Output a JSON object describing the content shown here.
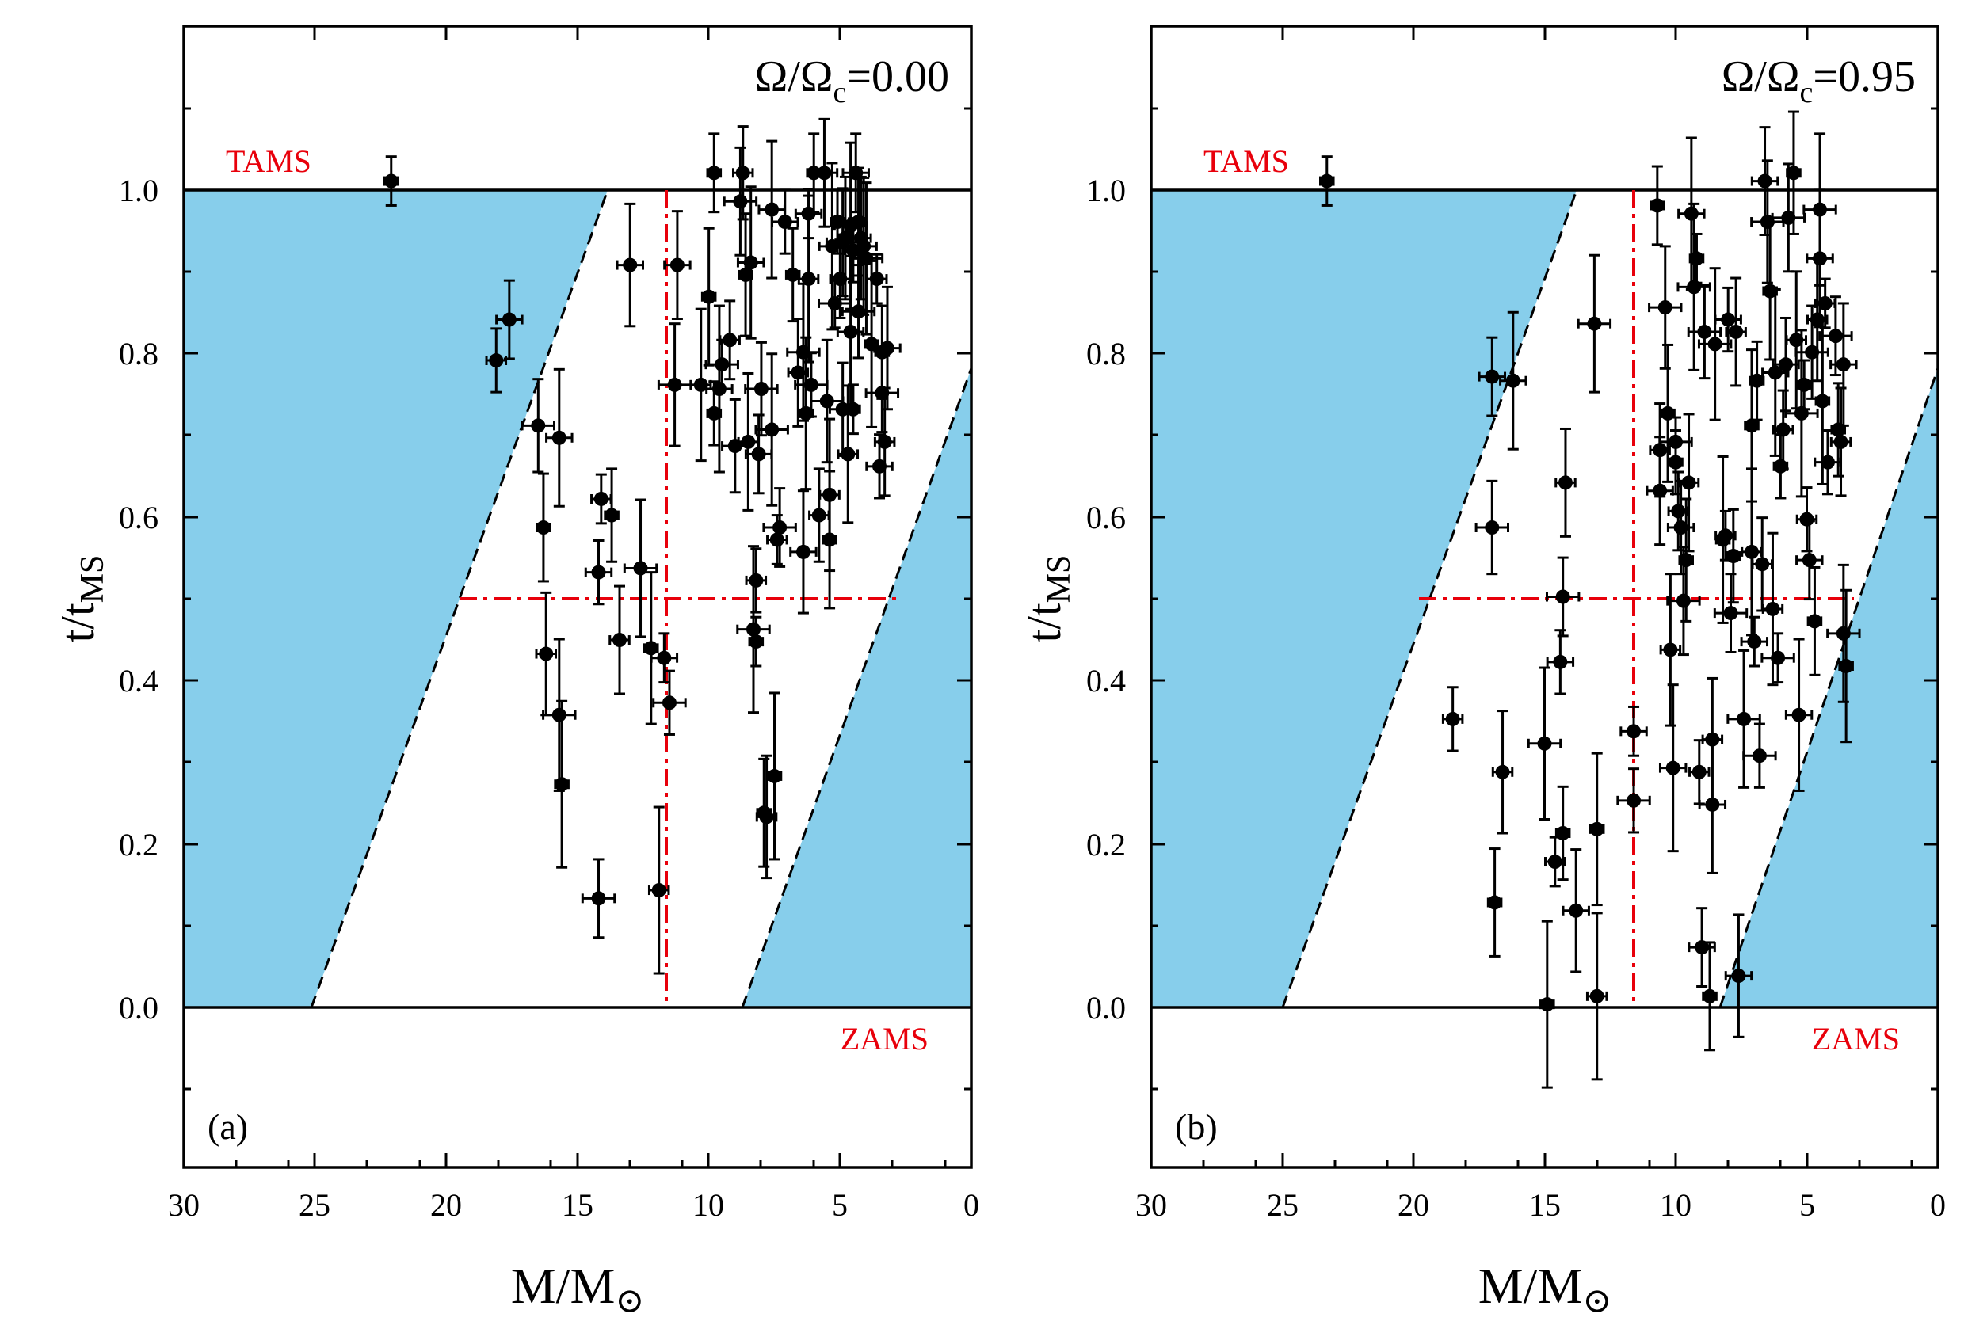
{
  "chart_data": [
    {
      "type": "scatter",
      "panel_label": "(a)",
      "title": "Ω/Ωc=0.00",
      "omega_symbol": "Ω/Ω",
      "omega_sub": "c",
      "omega_value": "=0.00",
      "xlabel": "M/M⊙",
      "xlabel_main": "M/M",
      "xlabel_sub": "⊙",
      "ylabel": "t/tMS",
      "ylabel_main": "t/t",
      "ylabel_sub": "MS",
      "xlim": [
        30,
        0
      ],
      "ylim": [
        -0.2,
        1.2
      ],
      "x_ticks": [
        "30",
        "25",
        "20",
        "15",
        "10",
        "5",
        "0"
      ],
      "y_ticks": [
        "0.0",
        "0.2",
        "0.4",
        "0.6",
        "0.8",
        "1.0"
      ],
      "tams_label": "TAMS",
      "zams_label": "ZAMS",
      "grid": false,
      "reference_lines": {
        "tams_y": 1.0,
        "zams_y": 0.0,
        "mass_split_x": 11.6,
        "half_y": 0.5,
        "half_x_range": [
          19.6,
          3.0
        ]
      },
      "shaded_regions": {
        "left_dashed": [
          [
            25.0,
            0.0
          ],
          [
            14.0,
            1.0
          ]
        ],
        "right_dashed": [
          [
            8.6,
            0.0
          ],
          [
            0.0,
            0.78
          ]
        ],
        "fill": "#87ceeb"
      },
      "series": [
        {
          "name": "stars",
          "x": [
            22.1,
            18.1,
            17.6,
            16.5,
            16.3,
            16.2,
            15.7,
            15.7,
            15.6,
            14.1,
            14.2,
            14.2,
            13.7,
            13.4,
            13.0,
            12.6,
            12.2,
            11.9,
            11.7,
            11.5,
            9.8,
            8.7,
            11.2,
            11.3,
            10.0,
            10.3,
            9.6,
            9.5,
            9.8,
            9.2,
            9.0,
            8.8,
            8.6,
            8.5,
            8.4,
            8.3,
            8.2,
            8.2,
            8.1,
            8.0,
            7.9,
            7.8,
            7.6,
            7.6,
            7.5,
            7.4,
            7.1,
            7.3,
            6.8,
            6.6,
            6.4,
            6.4,
            6.3,
            6.2,
            6.2,
            6.1,
            6.0,
            5.8,
            5.6,
            5.5,
            5.4,
            5.4,
            5.3,
            5.2,
            5.1,
            5.0,
            4.9,
            4.9,
            4.8,
            4.7,
            4.6,
            4.6,
            4.5,
            4.5,
            4.4,
            4.3,
            4.3,
            4.2,
            4.1,
            4.0,
            3.8,
            3.6,
            3.5,
            3.4,
            3.4,
            3.3,
            3.2
          ],
          "y": [
            1.01,
            0.79,
            0.84,
            0.71,
            0.585,
            0.43,
            0.695,
            0.355,
            0.27,
            0.62,
            0.53,
            0.13,
            0.6,
            0.447,
            0.907,
            0.535,
            0.437,
            0.14,
            0.425,
            0.37,
            1.02,
            1.02,
            0.907,
            0.76,
            0.868,
            0.76,
            0.755,
            0.785,
            0.725,
            0.815,
            0.685,
            0.985,
            0.895,
            0.69,
            0.91,
            0.46,
            0.445,
            0.52,
            0.675,
            0.755,
            0.235,
            0.23,
            0.975,
            0.705,
            0.28,
            0.57,
            0.96,
            0.585,
            0.895,
            0.775,
            0.555,
            0.8,
            0.725,
            0.89,
            0.97,
            0.76,
            1.02,
            0.6,
            1.02,
            0.74,
            0.57,
            0.625,
            0.93,
            0.86,
            0.96,
            0.89,
            0.73,
            0.935,
            0.94,
            0.675,
            0.825,
            0.955,
            0.73,
            0.925,
            1.02,
            0.85,
            0.96,
            0.94,
            0.93,
            0.915,
            0.81,
            0.89,
            0.66,
            0.75,
            0.8,
            0.69,
            0.805
          ]
        }
      ]
    },
    {
      "type": "scatter",
      "panel_label": "(b)",
      "title": "Ω/Ωc=0.95",
      "omega_symbol": "Ω/Ω",
      "omega_sub": "c",
      "omega_value": "=0.95",
      "xlabel": "M/M⊙",
      "xlabel_main": "M/M",
      "xlabel_sub": "⊙",
      "ylabel": "t/tMS",
      "ylabel_main": "t/t",
      "ylabel_sub": "MS",
      "xlim": [
        30,
        0
      ],
      "ylim": [
        -0.2,
        1.2
      ],
      "x_ticks": [
        "30",
        "25",
        "20",
        "15",
        "10",
        "5",
        "0"
      ],
      "y_ticks": [
        "0.0",
        "0.2",
        "0.4",
        "0.6",
        "0.8",
        "1.0"
      ],
      "tams_label": "TAMS",
      "zams_label": "ZAMS",
      "grid": false,
      "reference_lines": {
        "tams_y": 1.0,
        "zams_y": 0.0,
        "mass_split_x": 11.6,
        "half_y": 0.5,
        "half_x_range": [
          19.8,
          3.2
        ]
      },
      "shaded_regions": {
        "left_dashed": [
          [
            25.0,
            0.0
          ],
          [
            13.9,
            1.0
          ]
        ],
        "right_dashed": [
          [
            8.3,
            0.0
          ],
          [
            0.0,
            0.78
          ]
        ],
        "fill": "#87ceeb"
      },
      "series": [
        {
          "name": "stars",
          "x": [
            23.3,
            18.5,
            17.0,
            17.0,
            16.9,
            16.6,
            16.2,
            15.0,
            14.9,
            14.6,
            14.4,
            14.3,
            14.3,
            14.2,
            13.8,
            13.1,
            13.0,
            13.0,
            11.6,
            11.6,
            10.7,
            10.6,
            10.6,
            10.4,
            10.3,
            10.2,
            10.1,
            10.0,
            10.0,
            9.9,
            9.8,
            9.7,
            9.6,
            9.5,
            9.4,
            9.3,
            9.2,
            9.1,
            9.0,
            8.9,
            8.7,
            8.6,
            8.6,
            8.5,
            8.2,
            8.1,
            8.0,
            7.9,
            7.8,
            7.7,
            7.6,
            7.4,
            7.1,
            7.1,
            7.0,
            6.8,
            6.9,
            6.7,
            6.6,
            6.5,
            6.4,
            6.3,
            6.2,
            6.1,
            6.0,
            5.9,
            5.8,
            5.7,
            5.5,
            5.4,
            5.3,
            5.2,
            5.1,
            5.0,
            4.9,
            4.8,
            4.7,
            4.6,
            4.5,
            4.5,
            4.4,
            4.3,
            4.2,
            3.9,
            3.8,
            3.7,
            3.6,
            3.6,
            3.5
          ],
          "y": [
            1.01,
            0.35,
            0.77,
            0.585,
            0.125,
            0.285,
            0.765,
            0.32,
            0.0,
            0.175,
            0.42,
            0.5,
            0.21,
            0.64,
            0.115,
            0.835,
            0.215,
            0.01,
            0.335,
            0.25,
            0.98,
            0.68,
            0.63,
            0.855,
            0.725,
            0.435,
            0.29,
            0.69,
            0.665,
            0.605,
            0.585,
            0.495,
            0.545,
            0.64,
            0.97,
            0.88,
            0.915,
            0.285,
            0.07,
            0.825,
            0.01,
            0.325,
            0.245,
            0.81,
            0.57,
            0.575,
            0.84,
            0.48,
            0.55,
            0.825,
            0.035,
            0.35,
            0.71,
            0.555,
            0.445,
            0.305,
            0.765,
            0.54,
            1.01,
            0.96,
            0.875,
            0.485,
            0.775,
            0.425,
            0.66,
            0.705,
            0.785,
            0.965,
            1.02,
            0.815,
            0.355,
            0.725,
            0.76,
            0.595,
            0.545,
            0.8,
            0.47,
            0.84,
            0.915,
            0.975,
            0.74,
            0.86,
            0.665,
            0.82,
            0.705,
            0.69,
            0.785,
            0.455,
            0.415
          ]
        }
      ]
    }
  ]
}
